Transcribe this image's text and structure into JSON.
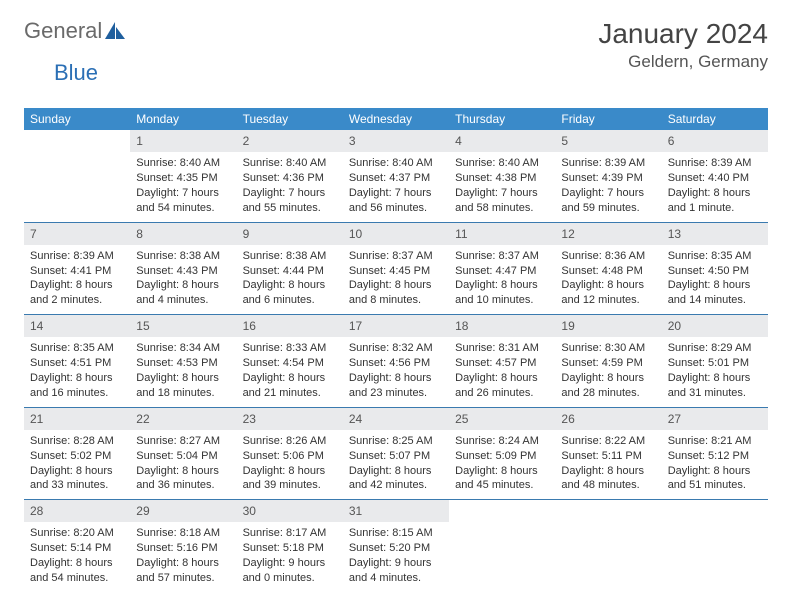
{
  "logo": {
    "text1": "General",
    "text2": "Blue"
  },
  "title": "January 2024",
  "location": "Geldern, Germany",
  "colors": {
    "header_bg": "#3a8ac9",
    "header_text": "#ffffff",
    "daynum_bg": "#e9eaec",
    "row_border": "#3a7aaf",
    "logo_accent": "#1f5f9e"
  },
  "weekdays": [
    "Sunday",
    "Monday",
    "Tuesday",
    "Wednesday",
    "Thursday",
    "Friday",
    "Saturday"
  ],
  "weeks": [
    [
      null,
      {
        "n": "1",
        "sr": "Sunrise: 8:40 AM",
        "ss": "Sunset: 4:35 PM",
        "dl1": "Daylight: 7 hours",
        "dl2": "and 54 minutes."
      },
      {
        "n": "2",
        "sr": "Sunrise: 8:40 AM",
        "ss": "Sunset: 4:36 PM",
        "dl1": "Daylight: 7 hours",
        "dl2": "and 55 minutes."
      },
      {
        "n": "3",
        "sr": "Sunrise: 8:40 AM",
        "ss": "Sunset: 4:37 PM",
        "dl1": "Daylight: 7 hours",
        "dl2": "and 56 minutes."
      },
      {
        "n": "4",
        "sr": "Sunrise: 8:40 AM",
        "ss": "Sunset: 4:38 PM",
        "dl1": "Daylight: 7 hours",
        "dl2": "and 58 minutes."
      },
      {
        "n": "5",
        "sr": "Sunrise: 8:39 AM",
        "ss": "Sunset: 4:39 PM",
        "dl1": "Daylight: 7 hours",
        "dl2": "and 59 minutes."
      },
      {
        "n": "6",
        "sr": "Sunrise: 8:39 AM",
        "ss": "Sunset: 4:40 PM",
        "dl1": "Daylight: 8 hours",
        "dl2": "and 1 minute."
      }
    ],
    [
      {
        "n": "7",
        "sr": "Sunrise: 8:39 AM",
        "ss": "Sunset: 4:41 PM",
        "dl1": "Daylight: 8 hours",
        "dl2": "and 2 minutes."
      },
      {
        "n": "8",
        "sr": "Sunrise: 8:38 AM",
        "ss": "Sunset: 4:43 PM",
        "dl1": "Daylight: 8 hours",
        "dl2": "and 4 minutes."
      },
      {
        "n": "9",
        "sr": "Sunrise: 8:38 AM",
        "ss": "Sunset: 4:44 PM",
        "dl1": "Daylight: 8 hours",
        "dl2": "and 6 minutes."
      },
      {
        "n": "10",
        "sr": "Sunrise: 8:37 AM",
        "ss": "Sunset: 4:45 PM",
        "dl1": "Daylight: 8 hours",
        "dl2": "and 8 minutes."
      },
      {
        "n": "11",
        "sr": "Sunrise: 8:37 AM",
        "ss": "Sunset: 4:47 PM",
        "dl1": "Daylight: 8 hours",
        "dl2": "and 10 minutes."
      },
      {
        "n": "12",
        "sr": "Sunrise: 8:36 AM",
        "ss": "Sunset: 4:48 PM",
        "dl1": "Daylight: 8 hours",
        "dl2": "and 12 minutes."
      },
      {
        "n": "13",
        "sr": "Sunrise: 8:35 AM",
        "ss": "Sunset: 4:50 PM",
        "dl1": "Daylight: 8 hours",
        "dl2": "and 14 minutes."
      }
    ],
    [
      {
        "n": "14",
        "sr": "Sunrise: 8:35 AM",
        "ss": "Sunset: 4:51 PM",
        "dl1": "Daylight: 8 hours",
        "dl2": "and 16 minutes."
      },
      {
        "n": "15",
        "sr": "Sunrise: 8:34 AM",
        "ss": "Sunset: 4:53 PM",
        "dl1": "Daylight: 8 hours",
        "dl2": "and 18 minutes."
      },
      {
        "n": "16",
        "sr": "Sunrise: 8:33 AM",
        "ss": "Sunset: 4:54 PM",
        "dl1": "Daylight: 8 hours",
        "dl2": "and 21 minutes."
      },
      {
        "n": "17",
        "sr": "Sunrise: 8:32 AM",
        "ss": "Sunset: 4:56 PM",
        "dl1": "Daylight: 8 hours",
        "dl2": "and 23 minutes."
      },
      {
        "n": "18",
        "sr": "Sunrise: 8:31 AM",
        "ss": "Sunset: 4:57 PM",
        "dl1": "Daylight: 8 hours",
        "dl2": "and 26 minutes."
      },
      {
        "n": "19",
        "sr": "Sunrise: 8:30 AM",
        "ss": "Sunset: 4:59 PM",
        "dl1": "Daylight: 8 hours",
        "dl2": "and 28 minutes."
      },
      {
        "n": "20",
        "sr": "Sunrise: 8:29 AM",
        "ss": "Sunset: 5:01 PM",
        "dl1": "Daylight: 8 hours",
        "dl2": "and 31 minutes."
      }
    ],
    [
      {
        "n": "21",
        "sr": "Sunrise: 8:28 AM",
        "ss": "Sunset: 5:02 PM",
        "dl1": "Daylight: 8 hours",
        "dl2": "and 33 minutes."
      },
      {
        "n": "22",
        "sr": "Sunrise: 8:27 AM",
        "ss": "Sunset: 5:04 PM",
        "dl1": "Daylight: 8 hours",
        "dl2": "and 36 minutes."
      },
      {
        "n": "23",
        "sr": "Sunrise: 8:26 AM",
        "ss": "Sunset: 5:06 PM",
        "dl1": "Daylight: 8 hours",
        "dl2": "and 39 minutes."
      },
      {
        "n": "24",
        "sr": "Sunrise: 8:25 AM",
        "ss": "Sunset: 5:07 PM",
        "dl1": "Daylight: 8 hours",
        "dl2": "and 42 minutes."
      },
      {
        "n": "25",
        "sr": "Sunrise: 8:24 AM",
        "ss": "Sunset: 5:09 PM",
        "dl1": "Daylight: 8 hours",
        "dl2": "and 45 minutes."
      },
      {
        "n": "26",
        "sr": "Sunrise: 8:22 AM",
        "ss": "Sunset: 5:11 PM",
        "dl1": "Daylight: 8 hours",
        "dl2": "and 48 minutes."
      },
      {
        "n": "27",
        "sr": "Sunrise: 8:21 AM",
        "ss": "Sunset: 5:12 PM",
        "dl1": "Daylight: 8 hours",
        "dl2": "and 51 minutes."
      }
    ],
    [
      {
        "n": "28",
        "sr": "Sunrise: 8:20 AM",
        "ss": "Sunset: 5:14 PM",
        "dl1": "Daylight: 8 hours",
        "dl2": "and 54 minutes."
      },
      {
        "n": "29",
        "sr": "Sunrise: 8:18 AM",
        "ss": "Sunset: 5:16 PM",
        "dl1": "Daylight: 8 hours",
        "dl2": "and 57 minutes."
      },
      {
        "n": "30",
        "sr": "Sunrise: 8:17 AM",
        "ss": "Sunset: 5:18 PM",
        "dl1": "Daylight: 9 hours",
        "dl2": "and 0 minutes."
      },
      {
        "n": "31",
        "sr": "Sunrise: 8:15 AM",
        "ss": "Sunset: 5:20 PM",
        "dl1": "Daylight: 9 hours",
        "dl2": "and 4 minutes."
      },
      null,
      null,
      null
    ]
  ]
}
